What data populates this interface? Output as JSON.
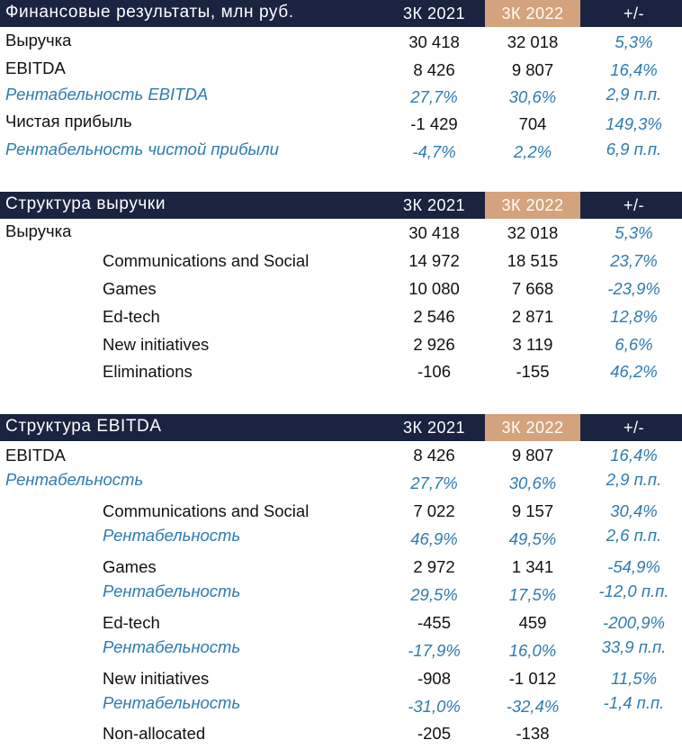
{
  "table1": {
    "title": "Финансовые результаты, млн руб.",
    "col1": "3К 2021",
    "col2": "3К 2022",
    "col3": "+/-",
    "rows": [
      {
        "label": "Выручка",
        "v1": "30 418",
        "v2": "32 018",
        "v3": "5,3%"
      },
      {
        "label": "EBITDA",
        "v1": "8 426",
        "v2": "9 807",
        "v3": "16,4%"
      },
      {
        "label": "Рентабельность EBITDA",
        "v1": "27,7%",
        "v2": "30,6%",
        "v3": "2,9 п.п."
      },
      {
        "label": "Чистая прибыль",
        "v1": "-1 429",
        "v2": "704",
        "v3": "149,3%"
      },
      {
        "label": "Рентабельность чистой прибыли",
        "v1": "-4,7%",
        "v2": "2,2%",
        "v3": "6,9 п.п."
      }
    ]
  },
  "table2": {
    "title": "Структура выручки",
    "col1": "3К 2021",
    "col2": "3К 2022",
    "col3": "+/-",
    "rows": [
      {
        "label": "Выручка",
        "v1": "30 418",
        "v2": "32 018",
        "v3": "5,3%"
      },
      {
        "label": "Communications and Social",
        "v1": "14 972",
        "v2": "18 515",
        "v3": "23,7%"
      },
      {
        "label": "Games",
        "v1": "10 080",
        "v2": "7 668",
        "v3": "-23,9%"
      },
      {
        "label": "Ed-tech",
        "v1": "2 546",
        "v2": "2 871",
        "v3": "12,8%"
      },
      {
        "label": "New initiatives",
        "v1": "2 926",
        "v2": "3 119",
        "v3": "6,6%"
      },
      {
        "label": "Eliminations",
        "v1": "-106",
        "v2": "-155",
        "v3": "46,2%"
      }
    ]
  },
  "table3": {
    "title": "Структура EBITDA",
    "col1": "3К 2021",
    "col2": "3К 2022",
    "col3": "+/-",
    "rows": [
      {
        "label": "EBITDA",
        "v1": "8 426",
        "v2": "9 807",
        "v3": "16,4%"
      },
      {
        "label": "Рентабельность",
        "v1": "27,7%",
        "v2": "30,6%",
        "v3": "2,9 п.п."
      },
      {
        "label": "Communications and Social",
        "v1": "7 022",
        "v2": "9 157",
        "v3": "30,4%"
      },
      {
        "label": "Рентабельность",
        "v1": "46,9%",
        "v2": "49,5%",
        "v3": "2,6 п.п."
      },
      {
        "label": "Games",
        "v1": "2 972",
        "v2": "1 341",
        "v3": "-54,9%"
      },
      {
        "label": "Рентабельность",
        "v1": "29,5%",
        "v2": "17,5%",
        "v3": "-12,0 п.п."
      },
      {
        "label": "Ed-tech",
        "v1": "-455",
        "v2": "459",
        "v3": "-200,9%"
      },
      {
        "label": "Рентабельность",
        "v1": "-17,9%",
        "v2": "16,0%",
        "v3": "33,9 п.п."
      },
      {
        "label": "New initiatives",
        "v1": "-908",
        "v2": "-1 012",
        "v3": "11,5%"
      },
      {
        "label": "Рентабельность",
        "v1": "-31,0%",
        "v2": "-32,4%",
        "v3": "-1,4 п.п."
      },
      {
        "label": "Non-allocated",
        "v1": "-205",
        "v2": "-138",
        "v3": ""
      }
    ]
  }
}
